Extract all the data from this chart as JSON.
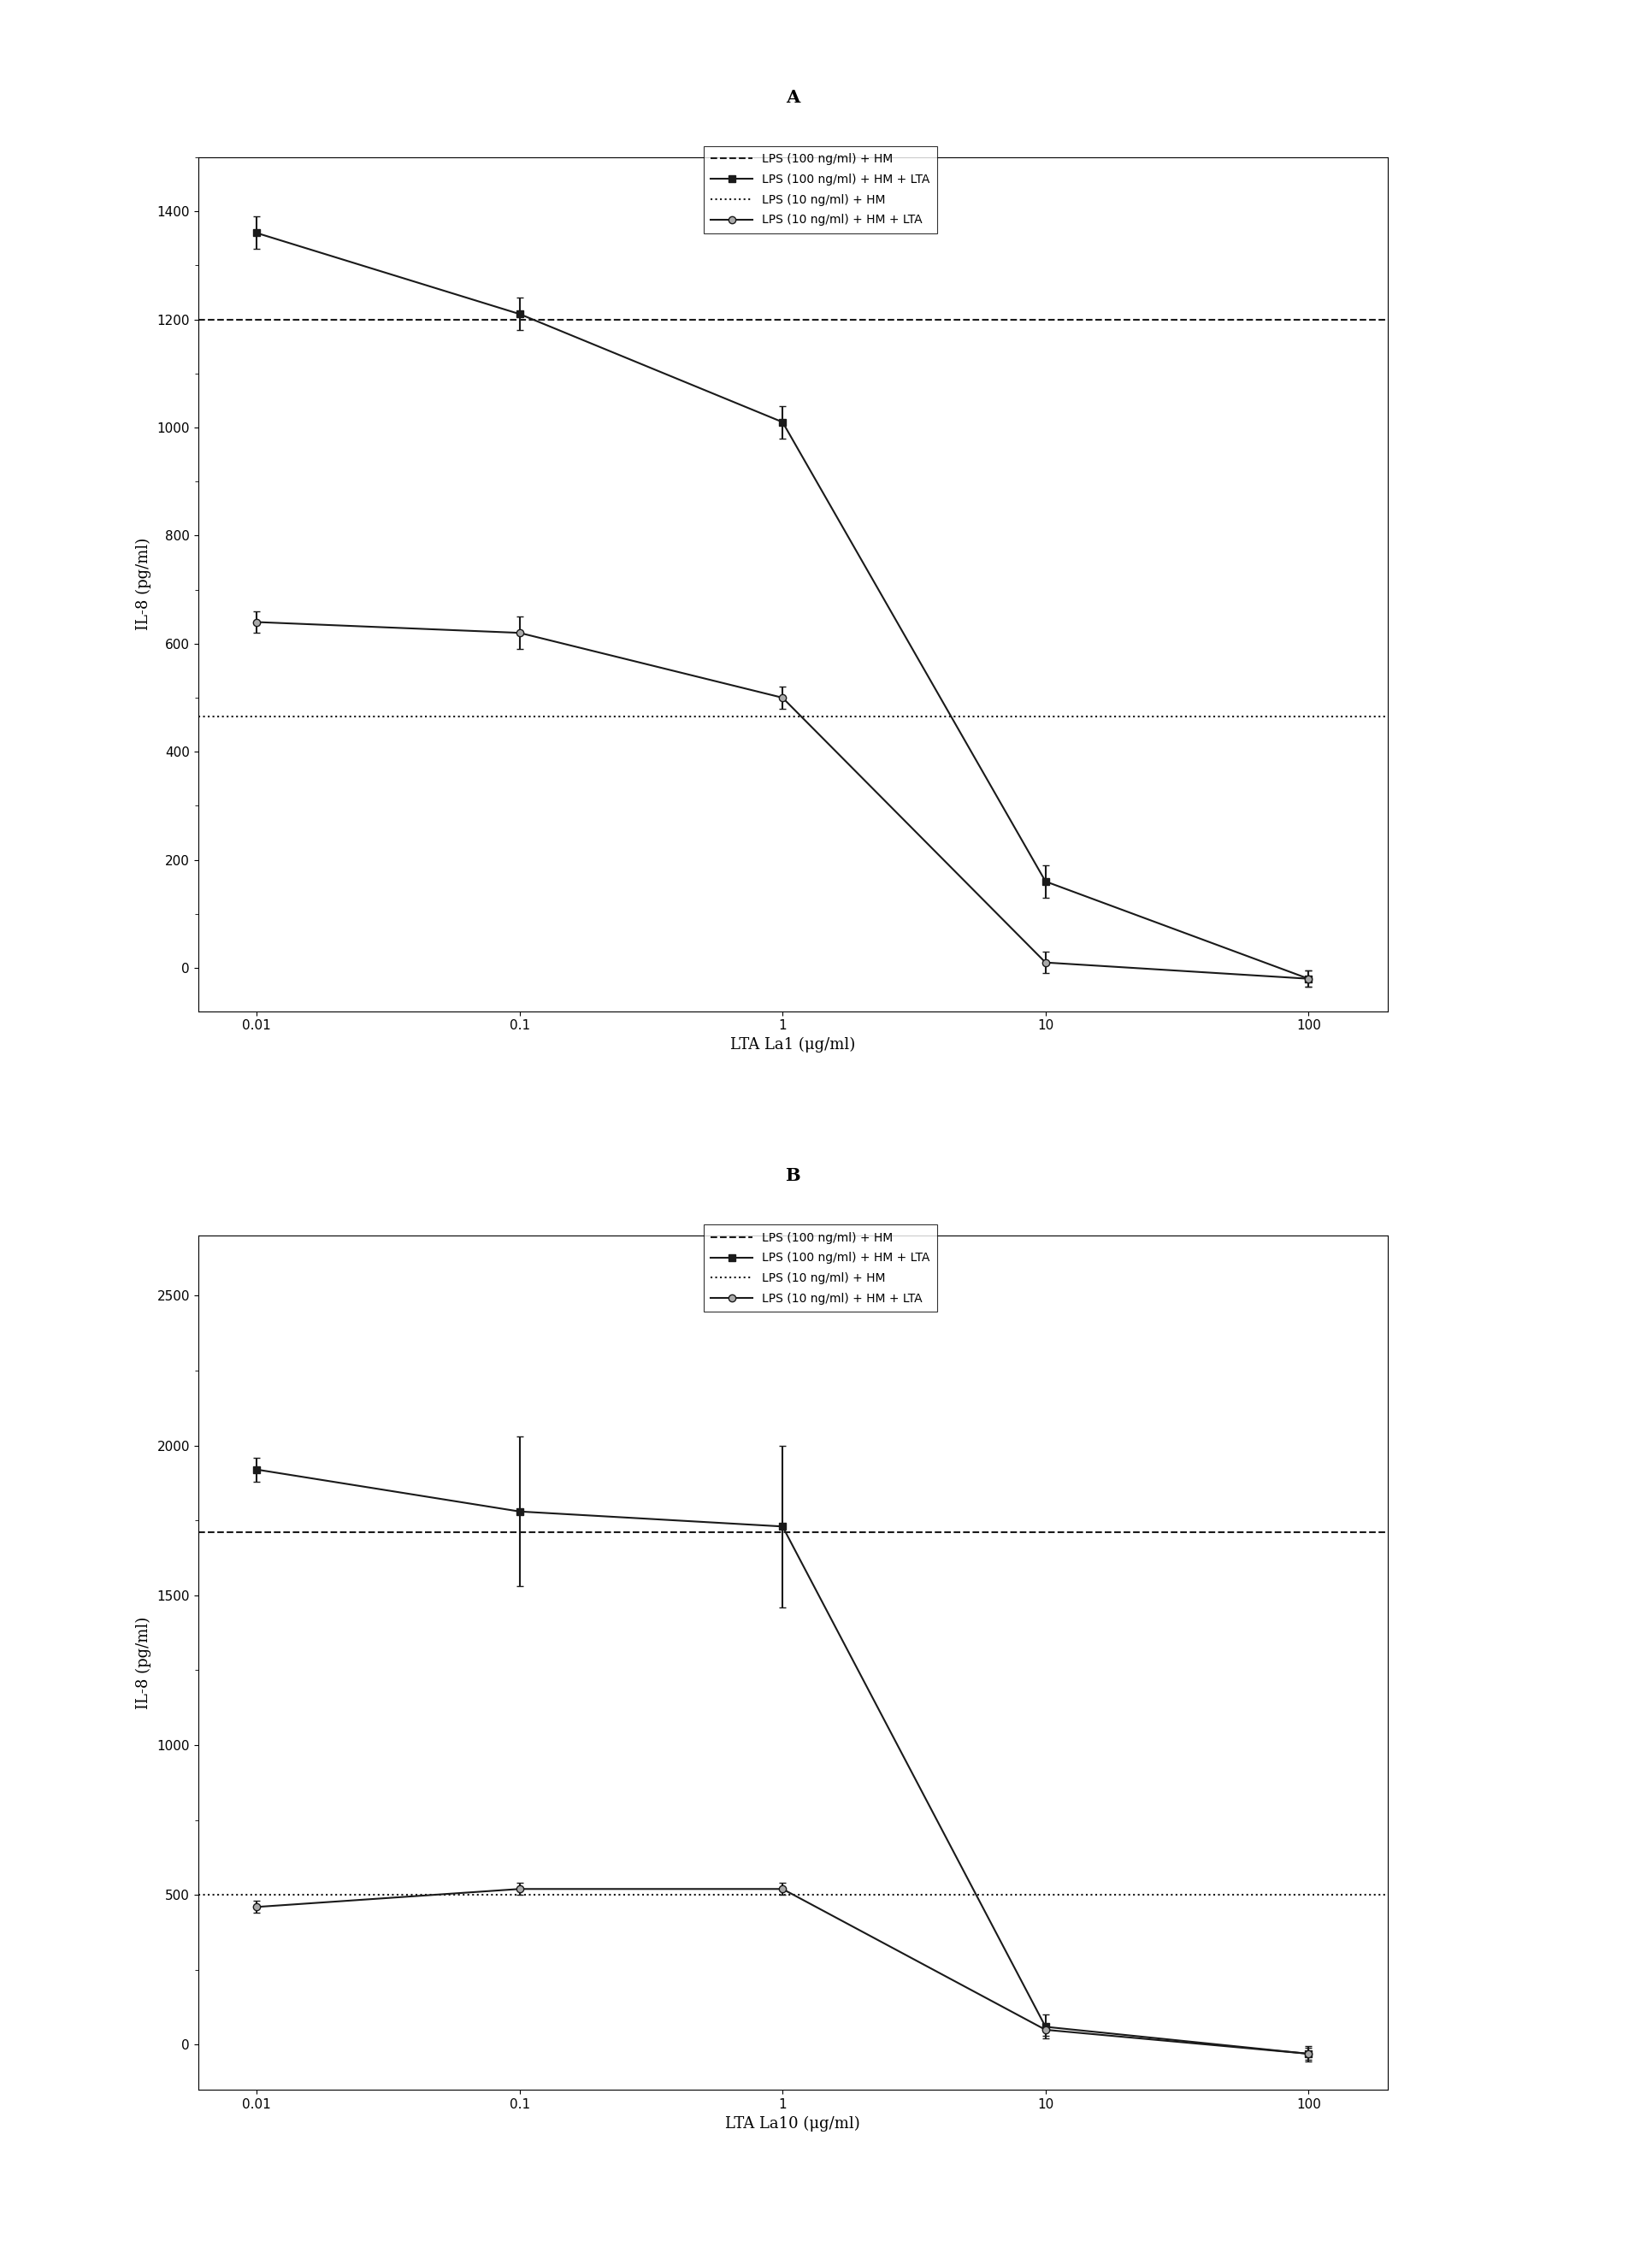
{
  "panel_A": {
    "title": "A",
    "xlabel": "LTA La1 (μg/ml)",
    "ylabel": "IL-8 (pg/ml)",
    "x_values": [
      0.01,
      0.1,
      1,
      10,
      100
    ],
    "line_100_hm_lta_y": [
      1360,
      1210,
      1010,
      160,
      -20
    ],
    "line_100_hm_lta_yerr": [
      30,
      30,
      30,
      30,
      15
    ],
    "line_10_hm_lta_y": [
      640,
      620,
      500,
      10,
      -20
    ],
    "line_10_hm_lta_yerr": [
      20,
      30,
      20,
      20,
      15
    ],
    "hline_100_hm": 1200,
    "hline_10_hm": 465,
    "ylim": [
      -80,
      1500
    ],
    "yticks": [
      0,
      200,
      400,
      600,
      800,
      1000,
      1200,
      1400
    ],
    "legend_labels": [
      "LPS (100 ng/ml) + HM",
      "LPS (100 ng/ml) + HM + LTA",
      "LPS (10 ng/ml) + HM",
      "LPS (10 ng/ml) + HM + LTA"
    ]
  },
  "panel_B": {
    "title": "B",
    "xlabel": "LTA La10 (μg/ml)",
    "ylabel": "IL-8 (pg/ml)",
    "x_values": [
      0.01,
      0.1,
      1,
      10,
      100
    ],
    "line_100_hm_lta_y": [
      1920,
      1780,
      1730,
      60,
      -30
    ],
    "line_100_hm_lta_yerr": [
      40,
      250,
      270,
      40,
      25
    ],
    "line_10_hm_lta_y": [
      460,
      520,
      520,
      50,
      -30
    ],
    "line_10_hm_lta_yerr": [
      20,
      20,
      20,
      20,
      20
    ],
    "hline_100_hm": 1710,
    "hline_10_hm": 500,
    "ylim": [
      -150,
      2700
    ],
    "yticks": [
      0,
      500,
      1000,
      1500,
      2000,
      2500
    ],
    "legend_labels": [
      "LPS (100 ng/ml) + HM",
      "LPS (100 ng/ml) + HM + LTA",
      "LPS (10 ng/ml) + HM",
      "LPS (10 ng/ml) + HM + LTA"
    ]
  },
  "line_color": "#1a1a1a",
  "marker_square": "s",
  "marker_circle": "o",
  "marker_size": 6,
  "line_width": 1.5,
  "error_capsize": 3,
  "background_color": "#ffffff",
  "xtick_labels": [
    "0.01",
    "0.1",
    "1",
    "10",
    "100"
  ],
  "xtick_values": [
    0.01,
    0.1,
    1,
    10,
    100
  ]
}
